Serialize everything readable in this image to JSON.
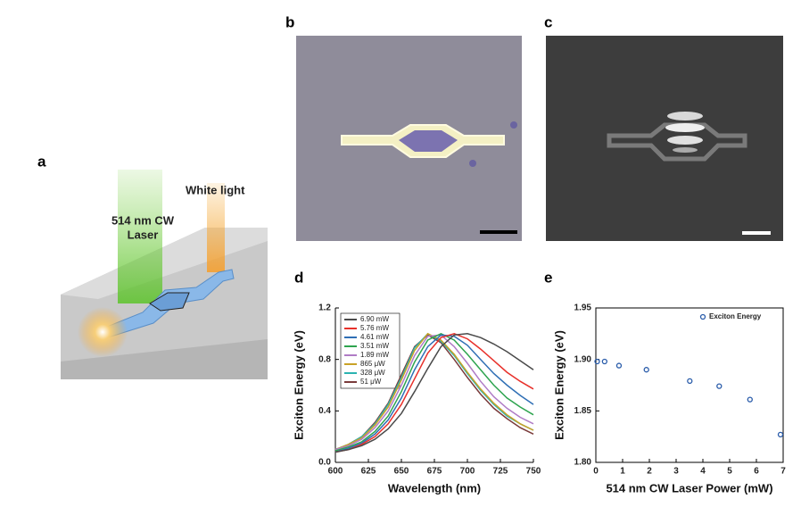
{
  "panel_labels": [
    "a",
    "b",
    "c",
    "d",
    "e"
  ],
  "illustration": {
    "laser_label": [
      "514 nm CW",
      "Laser"
    ],
    "white_light_label": "White light"
  },
  "chart_data": [
    {
      "type": "line",
      "x_label": "Wavelength (nm)",
      "y_label": "Exciton Energy (eV)",
      "x": [
        600,
        610,
        620,
        630,
        640,
        650,
        660,
        670,
        680,
        690,
        700,
        710,
        720,
        730,
        740,
        750
      ],
      "xlim": [
        600,
        750
      ],
      "xticks": [
        600,
        625,
        650,
        675,
        700,
        725,
        750
      ],
      "ylim": [
        0,
        1.2
      ],
      "yticks": [
        {
          "value": 0,
          "label": "0.0"
        },
        0.4,
        0.8,
        1.2
      ],
      "legend": "top-left",
      "series": [
        {
          "name": "6.90 mW",
          "color": "#4a4a4a",
          "values": [
            0.08,
            0.1,
            0.13,
            0.18,
            0.26,
            0.38,
            0.55,
            0.73,
            0.9,
            0.99,
            1.0,
            0.97,
            0.92,
            0.86,
            0.79,
            0.72
          ]
        },
        {
          "name": "5.76 mW",
          "color": "#e8302a",
          "values": [
            0.08,
            0.1,
            0.14,
            0.2,
            0.3,
            0.45,
            0.65,
            0.85,
            0.97,
            1.0,
            0.96,
            0.88,
            0.79,
            0.7,
            0.63,
            0.57
          ]
        },
        {
          "name": "4.61 mW",
          "color": "#2f6fb5",
          "values": [
            0.08,
            0.11,
            0.15,
            0.22,
            0.33,
            0.5,
            0.72,
            0.9,
            0.99,
            0.98,
            0.91,
            0.8,
            0.69,
            0.6,
            0.52,
            0.45
          ]
        },
        {
          "name": "3.51 mW",
          "color": "#2ea44f",
          "values": [
            0.09,
            0.12,
            0.16,
            0.24,
            0.36,
            0.55,
            0.78,
            0.95,
            1.0,
            0.95,
            0.84,
            0.72,
            0.6,
            0.5,
            0.43,
            0.37
          ]
        },
        {
          "name": "1.89 mW",
          "color": "#b07cc6",
          "values": [
            0.1,
            0.13,
            0.18,
            0.27,
            0.4,
            0.6,
            0.83,
            0.98,
            0.99,
            0.9,
            0.77,
            0.63,
            0.51,
            0.42,
            0.35,
            0.3
          ]
        },
        {
          "name": "865 μW",
          "color": "#c9a227",
          "values": [
            0.1,
            0.14,
            0.19,
            0.29,
            0.43,
            0.64,
            0.87,
            1.0,
            0.95,
            0.84,
            0.7,
            0.57,
            0.46,
            0.37,
            0.3,
            0.25
          ]
        },
        {
          "name": "328 μW",
          "color": "#2bb3b0",
          "values": [
            0.1,
            0.14,
            0.2,
            0.3,
            0.45,
            0.66,
            0.89,
            1.0,
            0.94,
            0.83,
            0.69,
            0.56,
            0.45,
            0.36,
            0.3,
            0.25
          ]
        },
        {
          "name": "51 μW",
          "color": "#7a3b3b",
          "values": [
            0.1,
            0.14,
            0.2,
            0.31,
            0.46,
            0.68,
            0.9,
            0.99,
            0.93,
            0.8,
            0.66,
            0.53,
            0.42,
            0.34,
            0.27,
            0.22
          ]
        }
      ]
    },
    {
      "type": "scatter",
      "x_label": "514 nm CW Laser Power (mW)",
      "y_label": "Exciton Energy (eV)",
      "x": [
        0.051,
        0.328,
        0.865,
        1.89,
        3.51,
        4.61,
        5.76,
        6.9
      ],
      "xlim": [
        0,
        7
      ],
      "xticks": [
        0,
        1,
        2,
        3,
        4,
        5,
        6,
        7
      ],
      "ylim": [
        1.8,
        1.95
      ],
      "yticks": [
        {
          "value": 1.8,
          "label": "1.80"
        },
        1.85,
        {
          "value": 1.9,
          "label": "1.90"
        },
        1.95
      ],
      "legend": "top-right",
      "series": [
        {
          "name": "Exciton Energy",
          "color": "#2a5caa",
          "values": [
            1.898,
            1.898,
            1.894,
            1.89,
            1.879,
            1.874,
            1.861,
            1.827
          ]
        }
      ]
    }
  ]
}
